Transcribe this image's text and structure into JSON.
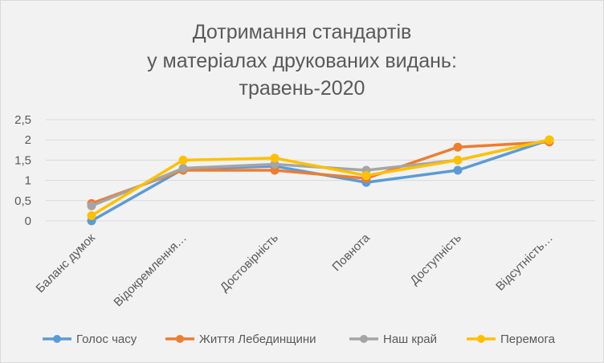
{
  "chart_data": {
    "type": "line",
    "title_lines": [
      "Дотримання стандартів",
      "у матеріалах друкованих видань:",
      "травень-2020"
    ],
    "categories": [
      "Баланс думок",
      "Відокремлення…",
      "Достовірність",
      "Повнота",
      "Доступність",
      "Відсутність…"
    ],
    "y_ticks": [
      "0",
      "0,5",
      "1",
      "1,5",
      "2",
      "2,5"
    ],
    "ylim": [
      0,
      2.5
    ],
    "grid": true,
    "legend_position": "bottom",
    "series": [
      {
        "name": "Голос часу",
        "color": "#5b9bd5",
        "values": [
          0,
          1.28,
          1.35,
          0.95,
          1.25,
          2.0
        ]
      },
      {
        "name": "Життя Лебединщини",
        "color": "#ed7d31",
        "values": [
          0.43,
          1.25,
          1.25,
          1.05,
          1.82,
          1.95
        ]
      },
      {
        "name": "Наш край",
        "color": "#a5a5a5",
        "values": [
          0.37,
          1.3,
          1.4,
          1.25,
          1.5,
          2.0
        ]
      },
      {
        "name": "Перемога",
        "color": "#ffc000",
        "values": [
          0.13,
          1.5,
          1.55,
          1.12,
          1.5,
          2.0
        ]
      }
    ]
  }
}
